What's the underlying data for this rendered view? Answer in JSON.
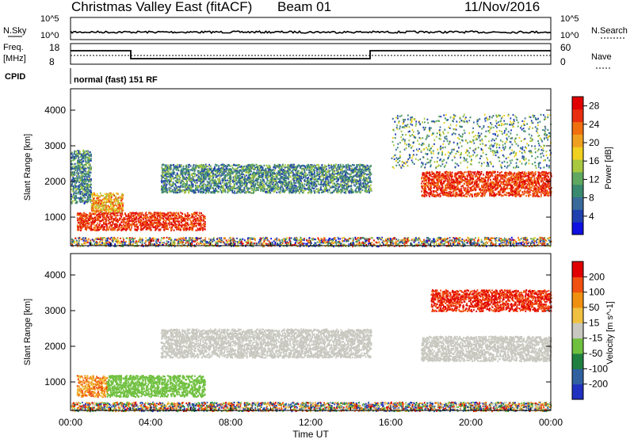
{
  "header": {
    "title": "Christmas Valley East (fitACF)",
    "beam": "Beam 01",
    "date": "11/Nov/2016"
  },
  "strips": {
    "nsky_label": "N.Sky",
    "nsky_ticks": [
      "10^5",
      "10^0"
    ],
    "nsearch_label": "N.Search",
    "nsearch_ticks": [
      "10^5",
      "10^0"
    ],
    "freq_label_1": "Freq.",
    "freq_label_2": "[MHz]",
    "freq_ticks": [
      "18",
      "8"
    ],
    "nave_label": "Nave",
    "nave_ticks": [
      "60",
      "0"
    ],
    "cpid_label": "CPID",
    "cpid_text": "normal (fast) 151 RF"
  },
  "chart_data": [
    {
      "type": "heatmap",
      "panel": "power",
      "ylabel": "Slant Range [km]",
      "y_ticks": [
        1000,
        2000,
        3000,
        4000
      ],
      "ylim": [
        200,
        4600
      ],
      "colorbar": {
        "label": "Power [dB]",
        "ticks": [
          "4",
          "8",
          "12",
          "16",
          "20",
          "24",
          "28"
        ],
        "range": [
          0,
          30
        ],
        "colors": [
          "#1010e0",
          "#2040b0",
          "#3a6a9a",
          "#3a8a70",
          "#60a860",
          "#a8c840",
          "#f0d020",
          "#f0a020",
          "#f07010",
          "#e83010",
          "#e00000"
        ]
      },
      "regions": [
        {
          "t0": 0.3,
          "t1": 6.7,
          "r0": 650,
          "r1": 1150,
          "level": "high",
          "desc": "strong near-range echoes"
        },
        {
          "t0": 1.0,
          "t1": 2.6,
          "r0": 1150,
          "r1": 1700,
          "level": "mid"
        },
        {
          "t0": 0.0,
          "t1": 1.0,
          "r0": 1400,
          "r1": 2900,
          "level": "low"
        },
        {
          "t0": 4.5,
          "t1": 15.0,
          "r0": 1700,
          "r1": 2500,
          "level": "low"
        },
        {
          "t0": 17.5,
          "t1": 24.0,
          "r0": 1600,
          "r1": 2300,
          "level": "high"
        },
        {
          "t0": 16.0,
          "t1": 24.0,
          "r0": 2400,
          "r1": 3900,
          "level": "sparse"
        },
        {
          "t0": 0.0,
          "t1": 24.0,
          "r0": 200,
          "r1": 450,
          "level": "noise"
        }
      ]
    },
    {
      "type": "heatmap",
      "panel": "velocity",
      "xlabel": "Time UT",
      "ylabel": "Slant Range [km]",
      "x_ticks": [
        "00:00",
        "04:00",
        "08:00",
        "12:00",
        "16:00",
        "20:00",
        "00:00"
      ],
      "xlim_hours": [
        0,
        24
      ],
      "y_ticks": [
        1000,
        2000,
        3000,
        4000
      ],
      "ylim": [
        200,
        4600
      ],
      "colorbar": {
        "label": "Velocity [m s^-1]",
        "ticks": [
          "200",
          "100",
          "50",
          "15",
          "-15",
          "-50",
          "-100",
          "-200"
        ],
        "colors": [
          "#2030c0",
          "#3060a0",
          "#208040",
          "#70c040",
          "#c8c8c0",
          "#f0c040",
          "#f09010",
          "#f05010",
          "#e00000"
        ]
      },
      "regions": [
        {
          "t0": 0.3,
          "t1": 1.8,
          "r0": 600,
          "r1": 1200,
          "level": "-15 to -100"
        },
        {
          "t0": 1.8,
          "t1": 6.7,
          "r0": 600,
          "r1": 1200,
          "level": "15 to 50"
        },
        {
          "t0": 4.5,
          "t1": 15.0,
          "r0": 1700,
          "r1": 2500,
          "level": "-15 to 15"
        },
        {
          "t0": 17.5,
          "t1": 24.0,
          "r0": 1600,
          "r1": 2300,
          "level": "-15 to 15"
        },
        {
          "t0": 18.0,
          "t1": 24.0,
          "r0": 3000,
          "r1": 3600,
          "level": "-100 to -200"
        },
        {
          "t0": 0.0,
          "t1": 24.0,
          "r0": 200,
          "r1": 450,
          "level": "-15 to -50"
        }
      ]
    }
  ]
}
